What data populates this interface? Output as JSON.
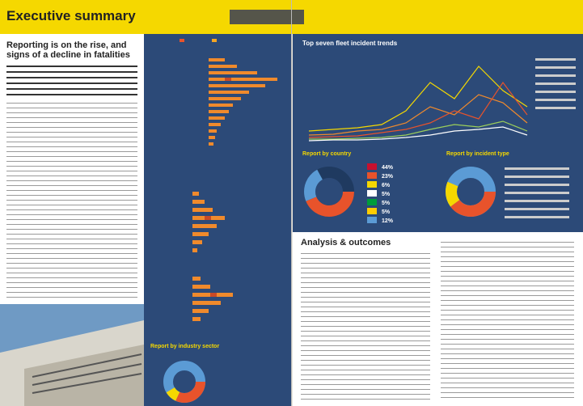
{
  "header": {
    "title": "Executive summary"
  },
  "intro": {
    "heading": "Reporting is on the rise, and signs of a decline in fatalities"
  },
  "charts": {
    "line_title": "Top seven fleet incident trends",
    "country_title": "Report by country",
    "type_title": "Report by incident type",
    "industry_title": "Report by industry sector",
    "country_percentages": [
      "44%",
      "23%",
      "6%",
      "5%",
      "5%",
      "5%",
      "12%"
    ]
  },
  "analysis": {
    "heading": "Analysis & outcomes"
  }
}
